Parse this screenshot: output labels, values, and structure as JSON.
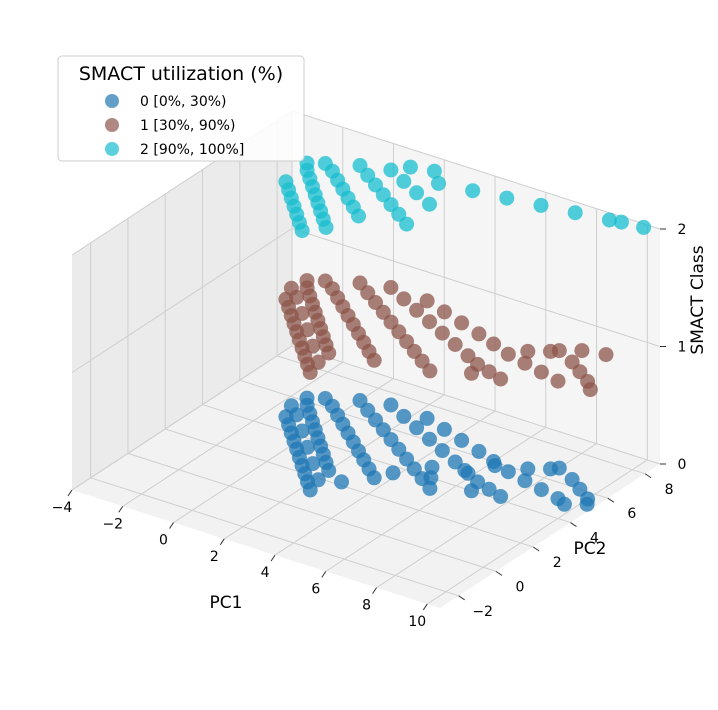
{
  "chart_data": {
    "type": "scatter",
    "projection": "3d",
    "xlabel": "PC1",
    "ylabel": "PC2",
    "zlabel": "SMACT Class",
    "xticks": [
      "−4",
      "−2",
      "0",
      "2",
      "4",
      "6",
      "8",
      "10"
    ],
    "yticks": [
      "−2",
      "0",
      "2",
      "4",
      "6",
      "8"
    ],
    "zticks": [
      "0",
      "1",
      "2"
    ],
    "xlim": [
      -4,
      10.5
    ],
    "ylim": [
      -3,
      8.8
    ],
    "zlim": [
      0,
      2
    ],
    "grid": true,
    "legend": {
      "title": "SMACT utilization (%)",
      "placement": "top-left",
      "entries": [
        "0 [0%, 30%)",
        "1 [30%, 90%)",
        "2 [90%, 100%]"
      ]
    },
    "series": [
      {
        "name": "0 [0%, 30%)",
        "z": 0,
        "color": "#1f77b4",
        "points": [
          [
            -1.5,
            6.2
          ],
          [
            -1.2,
            5.8
          ],
          [
            -0.8,
            5.4
          ],
          [
            -0.4,
            5.0
          ],
          [
            0.0,
            4.6
          ],
          [
            0.4,
            4.2
          ],
          [
            0.8,
            3.8
          ],
          [
            1.2,
            3.4
          ],
          [
            1.6,
            3.0
          ],
          [
            2.0,
            2.6
          ],
          [
            -1.0,
            6.5
          ],
          [
            -0.5,
            6.2
          ],
          [
            0.0,
            5.8
          ],
          [
            0.5,
            5.4
          ],
          [
            1.0,
            5.0
          ],
          [
            1.5,
            4.6
          ],
          [
            2.0,
            4.2
          ],
          [
            2.5,
            3.8
          ],
          [
            3.0,
            3.4
          ],
          [
            3.5,
            3.0
          ],
          [
            -1.3,
            4.8
          ],
          [
            -0.9,
            4.4
          ],
          [
            -0.5,
            4.0
          ],
          [
            -0.1,
            3.6
          ],
          [
            0.3,
            3.2
          ],
          [
            0.7,
            2.8
          ],
          [
            1.1,
            2.4
          ],
          [
            1.5,
            2.0
          ],
          [
            1.9,
            1.6
          ],
          [
            2.3,
            1.2
          ],
          [
            0.0,
            7.0
          ],
          [
            0.6,
            6.6
          ],
          [
            1.2,
            6.2
          ],
          [
            1.8,
            5.8
          ],
          [
            2.4,
            5.4
          ],
          [
            3.0,
            5.0
          ],
          [
            3.6,
            4.6
          ],
          [
            4.2,
            4.2
          ],
          [
            4.8,
            3.8
          ],
          [
            5.4,
            3.4
          ],
          [
            1.0,
            7.3
          ],
          [
            1.8,
            6.9
          ],
          [
            2.6,
            6.5
          ],
          [
            3.4,
            6.1
          ],
          [
            4.2,
            5.7
          ],
          [
            5.0,
            5.3
          ],
          [
            5.8,
            4.9
          ],
          [
            6.4,
            4.6
          ],
          [
            7.0,
            4.4
          ],
          [
            7.6,
            4.2
          ],
          [
            2.5,
            7.2
          ],
          [
            3.4,
            6.9
          ],
          [
            4.3,
            6.6
          ],
          [
            5.2,
            6.3
          ],
          [
            6.0,
            6.0
          ],
          [
            6.8,
            5.7
          ],
          [
            7.6,
            5.5
          ],
          [
            8.4,
            5.3
          ],
          [
            9.2,
            5.1
          ],
          [
            9.6,
            4.9
          ],
          [
            8.0,
            6.8
          ],
          [
            8.8,
            6.4
          ],
          [
            9.4,
            6.0
          ],
          [
            10.0,
            5.6
          ],
          [
            10.2,
            5.3
          ],
          [
            -1.6,
            5.5
          ],
          [
            -1.1,
            5.1
          ],
          [
            -0.3,
            4.3
          ],
          [
            0.5,
            3.5
          ],
          [
            1.3,
            2.7
          ],
          [
            2.1,
            1.9
          ],
          [
            2.8,
            2.2
          ],
          [
            3.8,
            3.6
          ],
          [
            4.6,
            4.6
          ],
          [
            5.6,
            5.0
          ],
          [
            6.2,
            5.8
          ],
          [
            7.2,
            6.2
          ],
          [
            7.8,
            6.6
          ],
          [
            6.6,
            4.0
          ],
          [
            5.0,
            4.0
          ]
        ]
      },
      {
        "name": "1 [30%, 90%)",
        "z": 1,
        "color": "#8c564b",
        "points": [
          [
            -1.5,
            6.2
          ],
          [
            -1.2,
            5.8
          ],
          [
            -0.8,
            5.4
          ],
          [
            -0.4,
            5.0
          ],
          [
            0.0,
            4.6
          ],
          [
            0.4,
            4.2
          ],
          [
            0.8,
            3.8
          ],
          [
            1.2,
            3.4
          ],
          [
            1.6,
            3.0
          ],
          [
            2.0,
            2.6
          ],
          [
            -1.0,
            6.5
          ],
          [
            -0.5,
            6.2
          ],
          [
            0.0,
            5.8
          ],
          [
            0.5,
            5.4
          ],
          [
            1.0,
            5.0
          ],
          [
            1.5,
            4.6
          ],
          [
            2.0,
            4.2
          ],
          [
            2.5,
            3.8
          ],
          [
            3.0,
            3.4
          ],
          [
            3.5,
            3.0
          ],
          [
            -1.3,
            4.8
          ],
          [
            -0.9,
            4.4
          ],
          [
            -0.5,
            4.0
          ],
          [
            -0.1,
            3.6
          ],
          [
            0.3,
            3.2
          ],
          [
            0.7,
            2.8
          ],
          [
            1.1,
            2.4
          ],
          [
            1.5,
            2.0
          ],
          [
            1.9,
            1.6
          ],
          [
            2.3,
            1.2
          ],
          [
            0.0,
            7.0
          ],
          [
            0.6,
            6.6
          ],
          [
            1.2,
            6.2
          ],
          [
            1.8,
            5.8
          ],
          [
            2.4,
            5.4
          ],
          [
            3.0,
            5.0
          ],
          [
            3.6,
            4.6
          ],
          [
            4.2,
            4.2
          ],
          [
            4.8,
            3.8
          ],
          [
            5.4,
            3.4
          ],
          [
            1.0,
            7.3
          ],
          [
            1.8,
            6.9
          ],
          [
            2.6,
            6.5
          ],
          [
            3.4,
            6.1
          ],
          [
            4.2,
            5.7
          ],
          [
            5.0,
            5.3
          ],
          [
            5.8,
            4.9
          ],
          [
            6.4,
            4.6
          ],
          [
            7.0,
            4.4
          ],
          [
            7.6,
            4.2
          ],
          [
            2.5,
            7.2
          ],
          [
            3.4,
            6.9
          ],
          [
            4.3,
            6.6
          ],
          [
            5.2,
            6.3
          ],
          [
            6.0,
            6.0
          ],
          [
            6.8,
            5.7
          ],
          [
            7.6,
            5.5
          ],
          [
            8.4,
            5.3
          ],
          [
            9.2,
            5.1
          ],
          [
            8.0,
            6.8
          ],
          [
            8.8,
            6.4
          ],
          [
            9.4,
            6.0
          ],
          [
            10.0,
            5.6
          ],
          [
            10.4,
            5.2
          ],
          [
            -1.6,
            5.5
          ],
          [
            -1.1,
            5.1
          ],
          [
            -0.3,
            4.3
          ],
          [
            0.5,
            3.5
          ],
          [
            1.3,
            2.7
          ],
          [
            2.1,
            1.9
          ],
          [
            6.6,
            4.0
          ],
          [
            7.2,
            6.2
          ],
          [
            7.8,
            6.6
          ],
          [
            8.6,
            7.2
          ],
          [
            9.4,
            7.4
          ]
        ]
      },
      {
        "name": "2 [90%, 100%]",
        "z": 2,
        "color": "#17becf",
        "points": [
          [
            -1.5,
            6.2
          ],
          [
            -1.2,
            5.8
          ],
          [
            -0.8,
            5.4
          ],
          [
            -0.4,
            5.0
          ],
          [
            0.0,
            4.6
          ],
          [
            0.4,
            4.2
          ],
          [
            0.8,
            3.8
          ],
          [
            1.2,
            3.4
          ],
          [
            1.6,
            3.0
          ],
          [
            -1.0,
            6.5
          ],
          [
            -0.5,
            6.2
          ],
          [
            0.0,
            5.8
          ],
          [
            0.5,
            5.4
          ],
          [
            1.0,
            5.0
          ],
          [
            1.5,
            4.6
          ],
          [
            2.0,
            4.2
          ],
          [
            -1.3,
            4.8
          ],
          [
            -0.9,
            4.4
          ],
          [
            -0.5,
            4.0
          ],
          [
            -0.1,
            3.6
          ],
          [
            0.3,
            3.2
          ],
          [
            0.7,
            2.8
          ],
          [
            1.1,
            2.4
          ],
          [
            0.0,
            7.0
          ],
          [
            0.6,
            6.6
          ],
          [
            1.2,
            6.2
          ],
          [
            1.8,
            5.8
          ],
          [
            2.4,
            5.4
          ],
          [
            3.0,
            5.0
          ],
          [
            3.6,
            4.6
          ],
          [
            1.0,
            7.3
          ],
          [
            1.8,
            6.9
          ],
          [
            2.6,
            6.5
          ],
          [
            3.4,
            6.1
          ],
          [
            2.8,
            7.4
          ],
          [
            4.0,
            7.6
          ],
          [
            5.2,
            7.8
          ],
          [
            6.4,
            8.0
          ],
          [
            7.6,
            8.2
          ],
          [
            8.8,
            8.4
          ],
          [
            9.2,
            8.5
          ],
          [
            10.0,
            8.6
          ],
          [
            1.4,
            7.8
          ],
          [
            2.2,
            8.0
          ]
        ]
      }
    ]
  }
}
